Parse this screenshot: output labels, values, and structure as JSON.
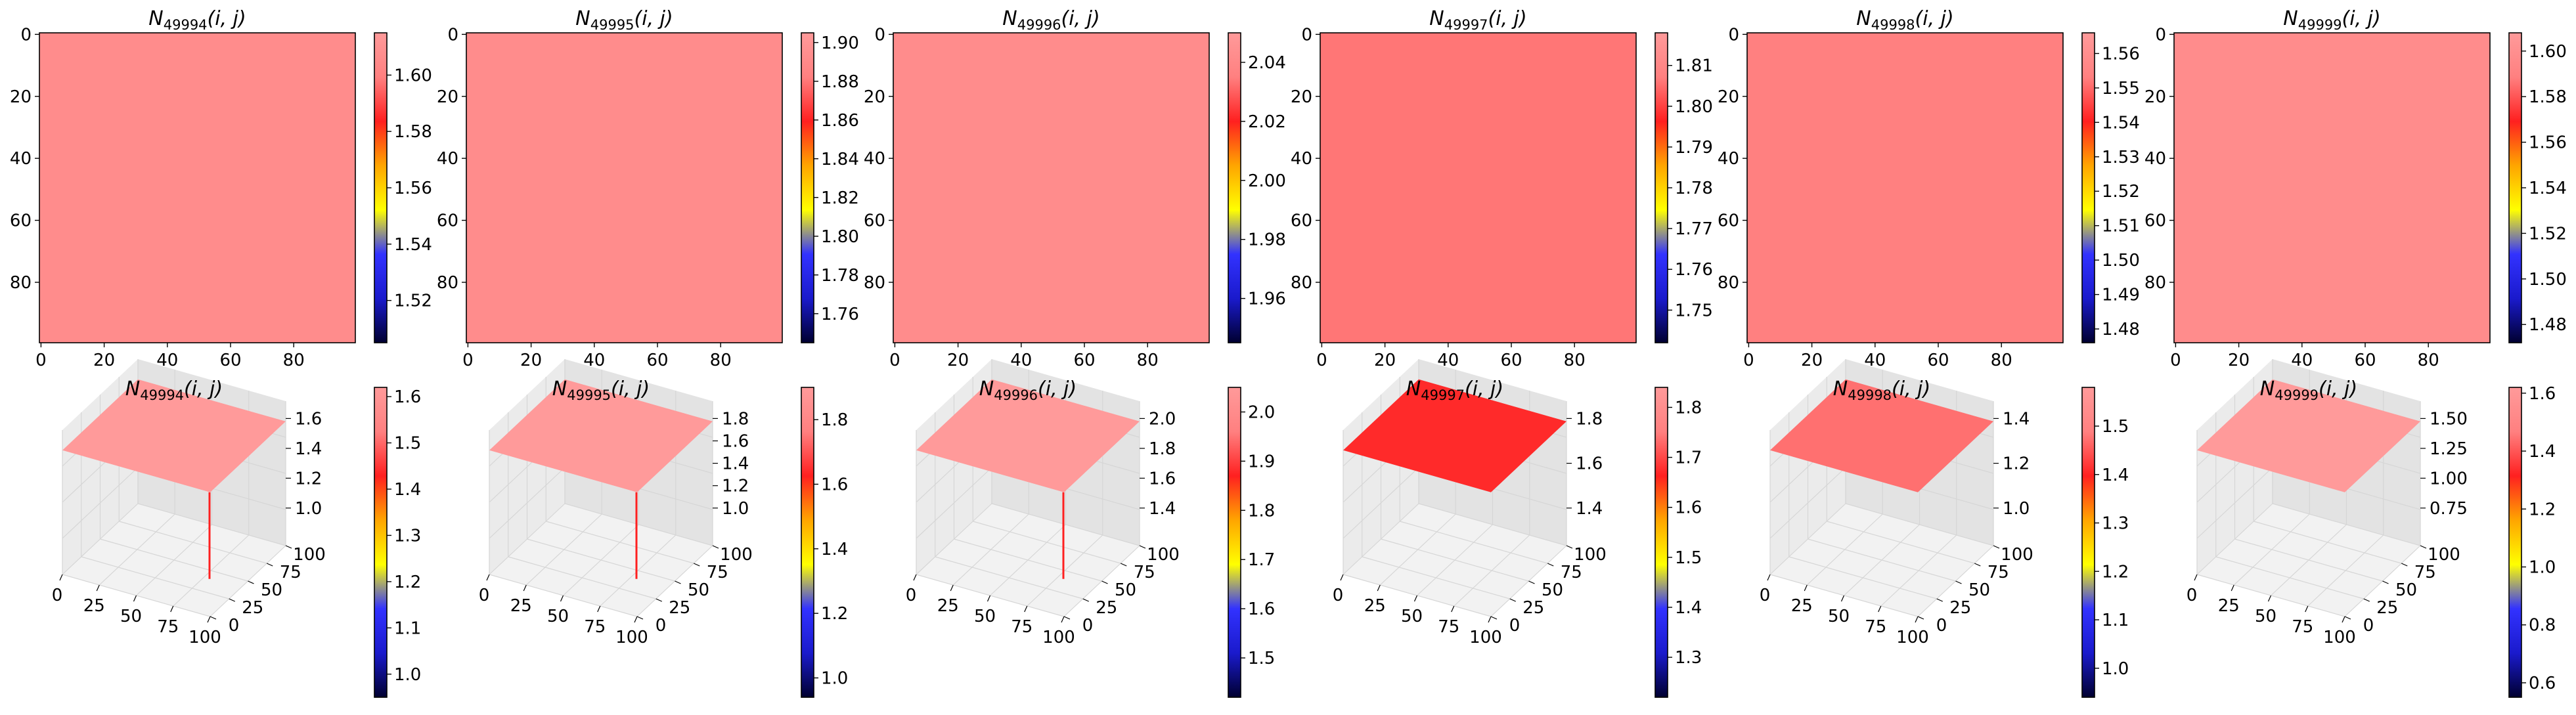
{
  "colors": {
    "background": "#ffffff",
    "axis": "#000000",
    "grid": "#d6d6d6",
    "pane_floor": "#f2f2f2",
    "pane_left": "#ebebeb",
    "pane_back": "#e3e3e3",
    "colormap": [
      "#000030",
      "#1a1acc",
      "#3232ff",
      "#ffff00",
      "#ffa500",
      "#ff2020",
      "#ff8080",
      "#ff9a9a"
    ]
  },
  "chart_data": [
    {
      "type": "heatmap",
      "title_sub": "49994",
      "title": "N_{49994}(i,j)",
      "surface": "#ff8c8c",
      "colorbar_ticks": [
        "1.52",
        "1.54",
        "1.56",
        "1.58",
        "1.60"
      ],
      "colorbar_range": [
        1.505,
        1.615
      ],
      "tick_values": [
        1.52,
        1.54,
        1.56,
        1.58,
        1.6
      ],
      "xticks": [
        "0",
        "20",
        "40",
        "60",
        "80"
      ],
      "yticks": [
        "0",
        "20",
        "40",
        "60",
        "80"
      ],
      "grid_size": 100
    },
    {
      "type": "heatmap",
      "title_sub": "49995",
      "title": "N_{49995}(i,j)",
      "surface": "#ff8c8c",
      "colorbar_ticks": [
        "1.76",
        "1.78",
        "1.80",
        "1.82",
        "1.84",
        "1.86",
        "1.88",
        "1.90"
      ],
      "colorbar_range": [
        1.745,
        1.905
      ],
      "tick_values": [
        1.76,
        1.78,
        1.8,
        1.82,
        1.84,
        1.86,
        1.88,
        1.9
      ],
      "xticks": [
        "0",
        "20",
        "40",
        "60",
        "80"
      ],
      "yticks": [
        "0",
        "20",
        "40",
        "60",
        "80"
      ],
      "grid_size": 100
    },
    {
      "type": "heatmap",
      "title_sub": "49996",
      "title": "N_{49996}(i,j)",
      "surface": "#ff8c8c",
      "colorbar_ticks": [
        "1.96",
        "1.98",
        "2.00",
        "2.02",
        "2.04"
      ],
      "colorbar_range": [
        1.945,
        2.05
      ],
      "tick_values": [
        1.96,
        1.98,
        2.0,
        2.02,
        2.04
      ],
      "xticks": [
        "0",
        "20",
        "40",
        "60",
        "80"
      ],
      "yticks": [
        "0",
        "20",
        "40",
        "60",
        "80"
      ],
      "grid_size": 100
    },
    {
      "type": "heatmap",
      "title_sub": "49997",
      "title": "N_{49997}(i,j)",
      "surface": "#ff7676",
      "colorbar_ticks": [
        "1.75",
        "1.76",
        "1.77",
        "1.78",
        "1.79",
        "1.80",
        "1.81"
      ],
      "colorbar_range": [
        1.742,
        1.818
      ],
      "tick_values": [
        1.75,
        1.76,
        1.77,
        1.78,
        1.79,
        1.8,
        1.81
      ],
      "xticks": [
        "0",
        "20",
        "40",
        "60",
        "80"
      ],
      "yticks": [
        "0",
        "20",
        "40",
        "60",
        "80"
      ],
      "grid_size": 100
    },
    {
      "type": "heatmap",
      "title_sub": "49998",
      "title": "N_{49998}(i,j)",
      "surface": "#ff8080",
      "colorbar_ticks": [
        "1.48",
        "1.49",
        "1.50",
        "1.51",
        "1.52",
        "1.53",
        "1.54",
        "1.55",
        "1.56"
      ],
      "colorbar_range": [
        1.476,
        1.566
      ],
      "tick_values": [
        1.48,
        1.49,
        1.5,
        1.51,
        1.52,
        1.53,
        1.54,
        1.55,
        1.56
      ],
      "xticks": [
        "0",
        "20",
        "40",
        "60",
        "80"
      ],
      "yticks": [
        "0",
        "20",
        "40",
        "60",
        "80"
      ],
      "grid_size": 100
    },
    {
      "type": "heatmap",
      "title_sub": "49999",
      "title": "N_{49999}(i,j)",
      "surface": "#ff8c8c",
      "colorbar_ticks": [
        "1.48",
        "1.50",
        "1.52",
        "1.54",
        "1.56",
        "1.58",
        "1.60"
      ],
      "colorbar_range": [
        1.472,
        1.608
      ],
      "tick_values": [
        1.48,
        1.5,
        1.52,
        1.54,
        1.56,
        1.58,
        1.6
      ],
      "xticks": [
        "0",
        "20",
        "40",
        "60",
        "80"
      ],
      "yticks": [
        "0",
        "20",
        "40",
        "60",
        "80"
      ],
      "grid_size": 100
    },
    {
      "type": "area",
      "title_sub": "49994",
      "title": "N_{49994}(i,j)",
      "surface": "#ff9a9a",
      "colorbar_ticks": [
        "1.0",
        "1.1",
        "1.2",
        "1.3",
        "1.4",
        "1.5",
        "1.6"
      ],
      "colorbar_range": [
        0.95,
        1.62
      ],
      "tick_values": [
        1.0,
        1.1,
        1.2,
        1.3,
        1.4,
        1.5,
        1.6
      ],
      "zticks": [
        "1.0",
        "1.2",
        "1.4",
        "1.6"
      ],
      "xticks": [
        "0",
        "25",
        "50",
        "75",
        "100"
      ],
      "yticks": [
        "0",
        "25",
        "50",
        "75",
        "100"
      ],
      "spike": true
    },
    {
      "type": "area",
      "title_sub": "49995",
      "title": "N_{49995}(i,j)",
      "surface": "#ff9a9a",
      "colorbar_ticks": [
        "1.0",
        "1.2",
        "1.4",
        "1.6",
        "1.8"
      ],
      "colorbar_range": [
        0.94,
        1.9
      ],
      "tick_values": [
        1.0,
        1.2,
        1.4,
        1.6,
        1.8
      ],
      "zticks": [
        "1.0",
        "1.2",
        "1.4",
        "1.6",
        "1.8"
      ],
      "xticks": [
        "0",
        "25",
        "50",
        "75",
        "100"
      ],
      "yticks": [
        "0",
        "25",
        "50",
        "75",
        "100"
      ],
      "spike": true
    },
    {
      "type": "area",
      "title_sub": "49996",
      "title": "N_{49996}(i,j)",
      "surface": "#ff9a9a",
      "colorbar_ticks": [
        "1.5",
        "1.6",
        "1.7",
        "1.8",
        "1.9",
        "2.0"
      ],
      "colorbar_range": [
        1.42,
        2.05
      ],
      "tick_values": [
        1.5,
        1.6,
        1.7,
        1.8,
        1.9,
        2.0
      ],
      "zticks": [
        "1.4",
        "1.6",
        "1.8",
        "2.0"
      ],
      "xticks": [
        "0",
        "25",
        "50",
        "75",
        "100"
      ],
      "yticks": [
        "0",
        "25",
        "50",
        "75",
        "100"
      ],
      "spike": true
    },
    {
      "type": "area",
      "title_sub": "49997",
      "title": "N_{49997}(i,j)",
      "surface": "#ff2a2a",
      "colorbar_ticks": [
        "1.3",
        "1.4",
        "1.5",
        "1.6",
        "1.7",
        "1.8"
      ],
      "colorbar_range": [
        1.22,
        1.84
      ],
      "tick_values": [
        1.3,
        1.4,
        1.5,
        1.6,
        1.7,
        1.8
      ],
      "zticks": [
        "1.4",
        "1.6",
        "1.8"
      ],
      "xticks": [
        "0",
        "25",
        "50",
        "75",
        "100"
      ],
      "yticks": [
        "0",
        "25",
        "50",
        "75",
        "100"
      ],
      "spike": false
    },
    {
      "type": "area",
      "title_sub": "49998",
      "title": "N_{49998}(i,j)",
      "surface": "#ff7070",
      "colorbar_ticks": [
        "1.0",
        "1.1",
        "1.2",
        "1.3",
        "1.4",
        "1.5"
      ],
      "colorbar_range": [
        0.94,
        1.58
      ],
      "tick_values": [
        1.0,
        1.1,
        1.2,
        1.3,
        1.4,
        1.5
      ],
      "zticks": [
        "1.0",
        "1.2",
        "1.4"
      ],
      "xticks": [
        "0",
        "25",
        "50",
        "75",
        "100"
      ],
      "yticks": [
        "0",
        "25",
        "50",
        "75",
        "100"
      ],
      "spike": false
    },
    {
      "type": "area",
      "title_sub": "49999",
      "title": "N_{49999}(i,j)",
      "surface": "#ff9a9a",
      "colorbar_ticks": [
        "0.6",
        "0.8",
        "1.0",
        "1.2",
        "1.4",
        "1.6"
      ],
      "colorbar_range": [
        0.55,
        1.62
      ],
      "tick_values": [
        0.6,
        0.8,
        1.0,
        1.2,
        1.4,
        1.6
      ],
      "zticks": [
        "0.75",
        "1.00",
        "1.25",
        "1.50"
      ],
      "xticks": [
        "0",
        "25",
        "50",
        "75",
        "100"
      ],
      "yticks": [
        "0",
        "25",
        "50",
        "75",
        "100"
      ],
      "spike": false
    }
  ]
}
